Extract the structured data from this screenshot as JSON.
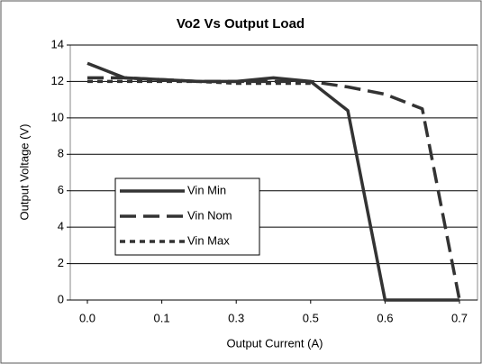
{
  "chart_data": {
    "type": "line",
    "title": "Vo2 Vs Output Load",
    "x_label": "Output Current (A)",
    "y_label": "Output Voltage (V)",
    "categories": [
      "0.0",
      null,
      "0.1",
      null,
      "0.3",
      null,
      "0.5",
      null,
      "0.6",
      null,
      "0.7"
    ],
    "series": [
      {
        "name": "Vin Min",
        "color": "#333333",
        "line_style": "solid",
        "values": [
          13.0,
          12.2,
          12.1,
          12.0,
          12.0,
          12.2,
          12.0,
          10.4,
          0,
          0,
          0
        ]
      },
      {
        "name": "Vin Nom",
        "color": "#333333",
        "line_style": "long-dash",
        "values": [
          12.2,
          12.2,
          12.1,
          12.0,
          12.0,
          12.0,
          12.0,
          11.7,
          11.3,
          10.5,
          0
        ]
      },
      {
        "name": "Vin Max",
        "color": "#333333",
        "line_style": "short-dash",
        "values": [
          12.0,
          12.0,
          12.0,
          12.0,
          11.9,
          11.9,
          11.9,
          null,
          null,
          null,
          null
        ]
      }
    ],
    "ylim": [
      0,
      14
    ],
    "yticks": [
      0,
      2,
      4,
      6,
      8,
      10,
      12,
      14
    ],
    "grid": true
  }
}
